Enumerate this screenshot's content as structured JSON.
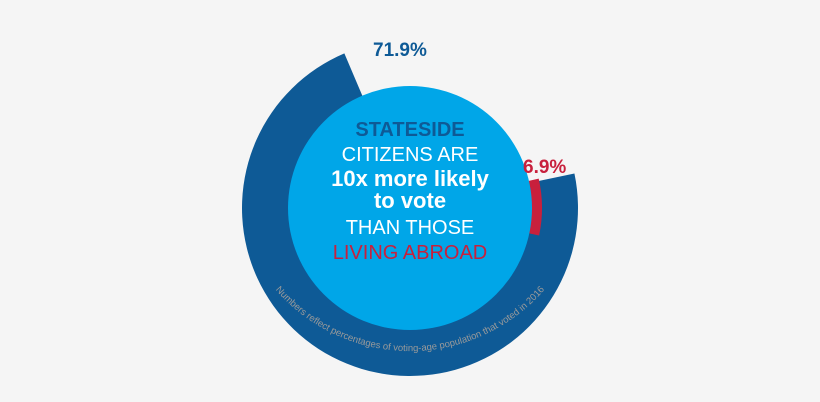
{
  "colors": {
    "background": "#f5f5f5",
    "outer_ring": "#0e5a96",
    "inner_disc": "#00a6e8",
    "abroad_red": "#c8203c",
    "white": "#ffffff",
    "footnote_gray": "#9a9a9a"
  },
  "chart_data": {
    "type": "pie",
    "series": [
      {
        "name": "",
        "value": 71.9,
        "label": "71.9%",
        "color": "#0e5a96"
      },
      {
        "name": "",
        "value": 6.9,
        "label": "6.9%",
        "color": "#c8203c"
      }
    ],
    "center_text": {
      "line1": "STATESIDE",
      "line2": "CITIZENS ARE",
      "line3": "10x more likely",
      "line4": "to vote",
      "line5": "THAN THOSE",
      "line6": "LIVING ABROAD"
    },
    "footnote": "Numbers reflect percentages of voting-age population that voted in 2016"
  }
}
